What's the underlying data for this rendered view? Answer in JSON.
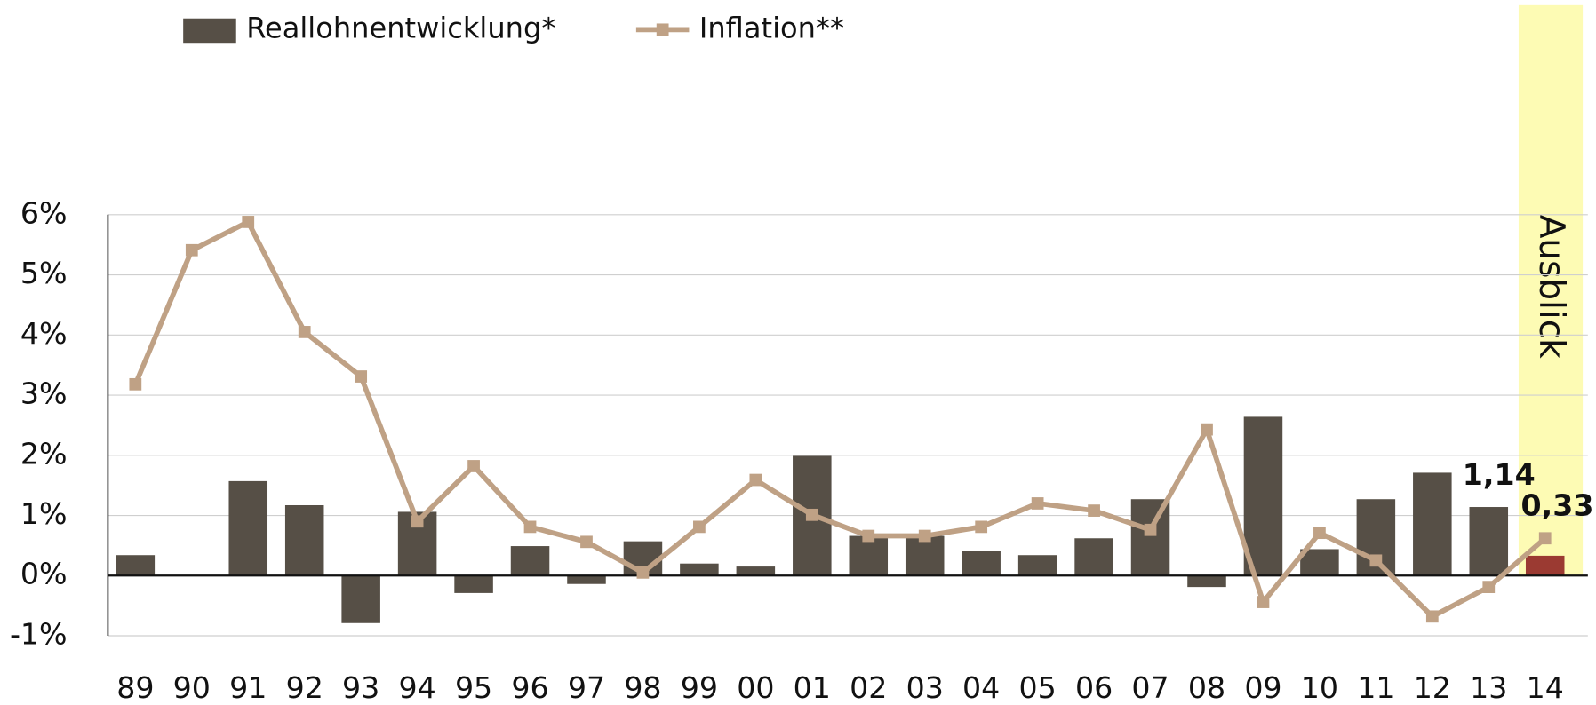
{
  "chart_data": {
    "type": "bar_line",
    "categories": [
      "89",
      "90",
      "91",
      "92",
      "93",
      "94",
      "95",
      "96",
      "97",
      "98",
      "99",
      "00",
      "01",
      "02",
      "03",
      "04",
      "05",
      "06",
      "07",
      "08",
      "09",
      "10",
      "11",
      "12",
      "13",
      "14"
    ],
    "series": [
      {
        "name": "Reallohnentwicklung*",
        "type": "bar",
        "color": "#564f46",
        "colors": [
          "#564f46",
          "#564f46",
          "#564f46",
          "#564f46",
          "#564f46",
          "#564f46",
          "#564f46",
          "#564f46",
          "#564f46",
          "#564f46",
          "#564f46",
          "#564f46",
          "#564f46",
          "#564f46",
          "#564f46",
          "#564f46",
          "#564f46",
          "#564f46",
          "#564f46",
          "#564f46",
          "#564f46",
          "#564f46",
          "#564f46",
          "#564f46",
          "#564f46",
          "#9b3a32"
        ],
        "values": [
          0.34,
          0,
          1.57,
          1.17,
          -0.79,
          1.06,
          -0.29,
          0.49,
          -0.14,
          0.57,
          0.2,
          0.15,
          1.99,
          0.66,
          0.66,
          0.41,
          0.34,
          0.62,
          1.27,
          -0.19,
          2.64,
          0.44,
          1.27,
          1.71,
          1.14,
          0.33
        ],
        "value_labels": [
          null,
          null,
          null,
          null,
          null,
          null,
          null,
          null,
          null,
          null,
          null,
          null,
          null,
          null,
          null,
          null,
          null,
          null,
          null,
          null,
          null,
          null,
          null,
          null,
          "1,14",
          "0,33"
        ],
        "value_label_colors": [
          "#564f46",
          "#9b3a32"
        ]
      },
      {
        "name": "Inflation**",
        "type": "line",
        "color": "#bfa185",
        "values": [
          3.18,
          5.41,
          5.88,
          4.05,
          3.31,
          0.9,
          1.82,
          0.81,
          0.56,
          0.05,
          0.81,
          1.59,
          1.01,
          0.66,
          0.66,
          0.81,
          1.2,
          1.08,
          0.76,
          2.43,
          -0.44,
          0.71,
          0.25,
          -0.68,
          -0.19,
          0.62
        ]
      }
    ],
    "ylim": [
      -1,
      6
    ],
    "yticks": [
      {
        "value": -1,
        "label": "-1%"
      },
      {
        "value": 0,
        "label": "0%"
      },
      {
        "value": 1,
        "label": "1%"
      },
      {
        "value": 2,
        "label": "2%"
      },
      {
        "value": 3,
        "label": "3%"
      },
      {
        "value": 4,
        "label": "4%"
      },
      {
        "value": 5,
        "label": "5%"
      },
      {
        "value": 6,
        "label": "6%"
      }
    ],
    "grid": true,
    "legend": "top-left",
    "annotation": {
      "text": "Ausblick",
      "category_index": 25,
      "color": "#fdfbb4"
    }
  }
}
